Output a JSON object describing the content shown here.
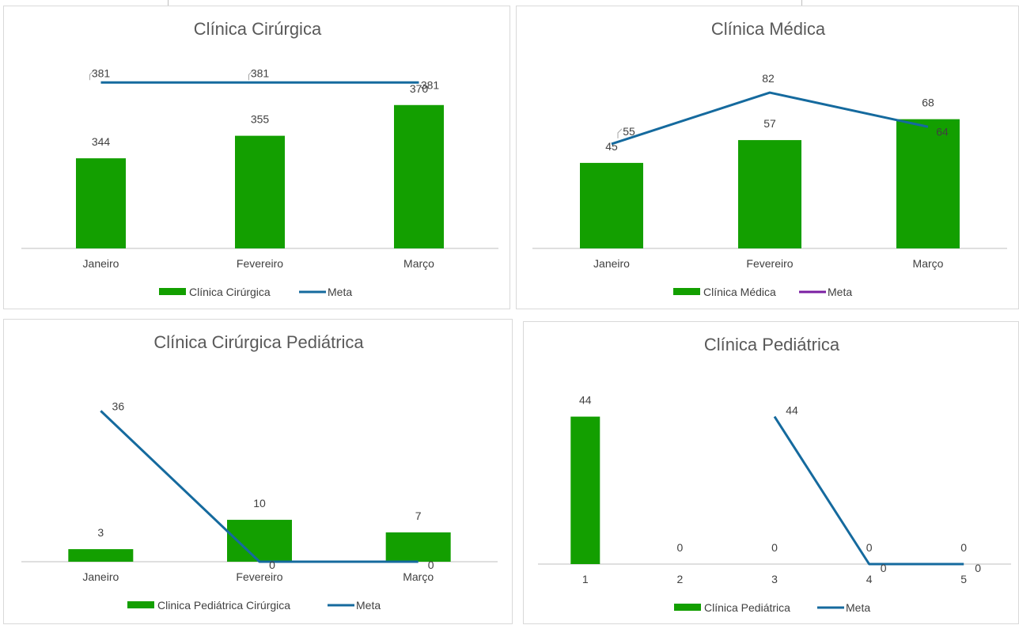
{
  "colors": {
    "bar": "#139f00",
    "line": "#156a9e",
    "meta_legend_purple": "#7b1fa2",
    "axis": "#bfbfbf"
  },
  "chart_data": [
    {
      "type": "bar",
      "title": "Clínica Cirúrgica",
      "categories": [
        "Janeiro",
        "Fevereiro",
        "Março"
      ],
      "series": [
        {
          "name": "Clínica Cirúrgica",
          "type": "bar",
          "values": [
            344,
            355,
            370
          ]
        },
        {
          "name": "Meta",
          "type": "line",
          "values": [
            381,
            381,
            381
          ]
        }
      ],
      "ylim": [
        300,
        390
      ],
      "grid": false,
      "legend": "bottom"
    },
    {
      "type": "bar",
      "title": "Clínica Médica",
      "categories": [
        "Janeiro",
        "Fevereiro",
        "Março"
      ],
      "series": [
        {
          "name": "Clínica Médica",
          "type": "bar",
          "values": [
            45,
            57,
            68
          ]
        },
        {
          "name": "Meta",
          "type": "line",
          "values": [
            55,
            82,
            64
          ]
        }
      ],
      "ylim": [
        0,
        97
      ],
      "grid": false,
      "legend": "bottom"
    },
    {
      "type": "bar",
      "title": "Clínica Cirúrgica Pediátrica",
      "categories": [
        "Janeiro",
        "Fevereiro",
        "Março"
      ],
      "series": [
        {
          "name": "Clinica Pediátrica Cirúrgica",
          "type": "bar",
          "values": [
            3,
            10,
            7
          ]
        },
        {
          "name": "Meta",
          "type": "line",
          "values": [
            36,
            0,
            0
          ]
        }
      ],
      "ylim": [
        0,
        44
      ],
      "grid": false,
      "legend": "bottom"
    },
    {
      "type": "bar",
      "title": "Clínica Pediátrica",
      "categories": [
        "1",
        "2",
        "3",
        "4",
        "5"
      ],
      "series": [
        {
          "name": "Clínica Pediátrica",
          "type": "bar",
          "values": [
            44,
            0,
            0,
            0,
            0
          ]
        },
        {
          "name": "Meta",
          "type": "line",
          "values": [
            null,
            null,
            44,
            0,
            0
          ]
        }
      ],
      "ylim": [
        0,
        55
      ],
      "grid": false,
      "legend": "bottom"
    }
  ]
}
